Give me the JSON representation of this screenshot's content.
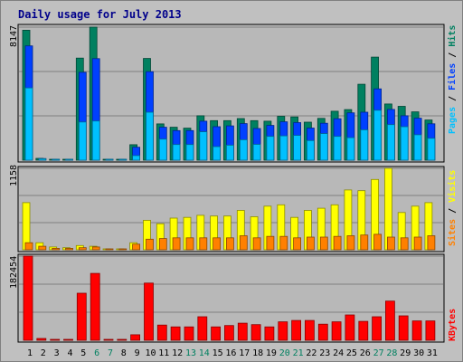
{
  "chart_data": {
    "type": "bar",
    "title": "Daily usage for July 2013",
    "days": [
      "1",
      "2",
      "3",
      "4",
      "5",
      "6",
      "7",
      "8",
      "9",
      "10",
      "11",
      "12",
      "13",
      "14",
      "15",
      "16",
      "17",
      "18",
      "19",
      "20",
      "21",
      "22",
      "23",
      "24",
      "25",
      "26",
      "27",
      "28",
      "29",
      "30",
      "31"
    ],
    "weekend_days": [
      "6",
      "7",
      "13",
      "14",
      "20",
      "21",
      "27",
      "28"
    ],
    "panels": [
      {
        "id": "top",
        "max_label": "8147",
        "ymax": 8147,
        "right_label": [
          {
            "text": "Pages",
            "color": "#00c0ff"
          },
          {
            "text": " / ",
            "color": "#000000"
          },
          {
            "text": "Files",
            "color": "#0040ff"
          },
          {
            "text": " / ",
            "color": "#000000"
          },
          {
            "text": "Hits",
            "color": "#008060"
          }
        ],
        "series": [
          {
            "name": "Hits",
            "color": "#008060",
            "values": [
              7960,
              110,
              45,
              50,
              6250,
              8147,
              45,
              45,
              950,
              6230,
              2220,
              2020,
              1960,
              2720,
              2420,
              2420,
              2550,
              2420,
              2390,
              2690,
              2650,
              2330,
              2560,
              3000,
              3100,
              4650,
              6310,
              3440,
              3300,
              2960,
              2460
            ]
          },
          {
            "name": "Files",
            "color": "#0040ff",
            "values": [
              7000,
              100,
              40,
              45,
              5380,
              6220,
              40,
              40,
              790,
              5420,
              2020,
              1810,
              1810,
              2390,
              2050,
              2100,
              2240,
              1940,
              2130,
              2350,
              2300,
              1970,
              2260,
              2540,
              2900,
              2940,
              4370,
              3110,
              2720,
              2570,
              2230
            ]
          },
          {
            "name": "Pages",
            "color": "#00c0ff",
            "values": [
              4430,
              90,
              30,
              35,
              2340,
              2400,
              30,
              30,
              280,
              2940,
              1290,
              960,
              960,
              1740,
              830,
              920,
              1250,
              970,
              1460,
              1490,
              1520,
              1200,
              1630,
              1460,
              1380,
              1860,
              3060,
              2180,
              2050,
              1560,
              1340
            ]
          }
        ]
      },
      {
        "id": "mid",
        "max_label": "1158",
        "ymax": 1158,
        "right_label": [
          {
            "text": "Sites",
            "color": "#ff8000"
          },
          {
            "text": " / ",
            "color": "#000000"
          },
          {
            "text": "Visits",
            "color": "#ffff00"
          }
        ],
        "series": [
          {
            "name": "Visits",
            "color": "#ffff00",
            "values": [
              670,
              100,
              40,
              30,
              60,
              50,
              10,
              10,
              100,
              420,
              370,
              450,
              460,
              490,
              480,
              480,
              560,
              470,
              620,
              640,
              460,
              560,
              590,
              640,
              850,
              840,
              1000,
              1158,
              530,
              620,
              670
            ]
          },
          {
            "name": "Sites",
            "color": "#ff8000",
            "values": [
              100,
              50,
              20,
              20,
              30,
              40,
              8,
              8,
              80,
              150,
              160,
              170,
              170,
              170,
              170,
              170,
              200,
              170,
              190,
              190,
              170,
              180,
              180,
              190,
              200,
              210,
              220,
              180,
              170,
              180,
              200
            ]
          }
        ]
      },
      {
        "id": "bot",
        "max_label": "182454",
        "ymax": 182454,
        "right_label": [
          {
            "text": "KBytes",
            "color": "#ff0000"
          }
        ],
        "series": [
          {
            "name": "KBytes",
            "color": "#ff0000",
            "values": [
              182454,
              4000,
              1000,
              1000,
              102000,
              145000,
              1000,
              1000,
              12000,
              124000,
              33000,
              29000,
              29000,
              51000,
              29000,
              32000,
              37000,
              34000,
              29000,
              40000,
              43000,
              43000,
              35000,
              40000,
              55000,
              41000,
              51000,
              85000,
              53000,
              42000,
              42000
            ]
          }
        ]
      }
    ]
  }
}
